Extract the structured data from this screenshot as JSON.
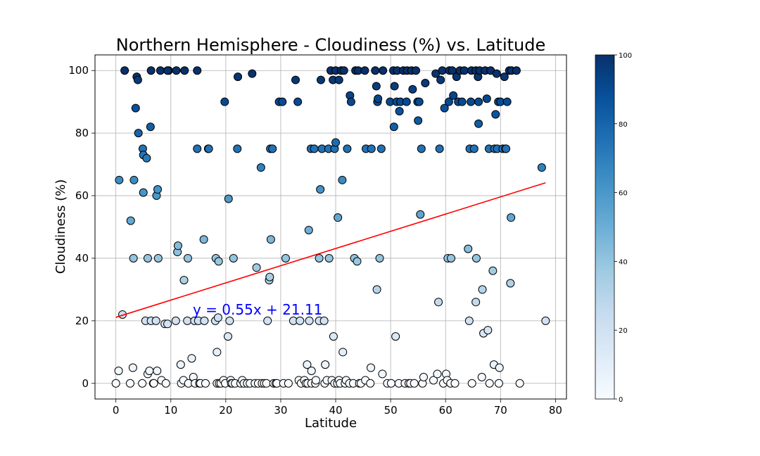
{
  "chart_data": {
    "type": "scatter",
    "title": "Northern Hemisphere - Cloudiness (%) vs. Latitude",
    "xlabel": "Latitude",
    "ylabel": "Cloudiness (%)",
    "xlim": [
      -3.8,
      82
    ],
    "ylim": [
      -5,
      105
    ],
    "x_ticks": [
      0,
      10,
      20,
      30,
      40,
      50,
      60,
      70,
      80
    ],
    "y_ticks": [
      0,
      20,
      40,
      60,
      80,
      100
    ],
    "grid": true,
    "colormap": "Blues",
    "colorbar": {
      "min": 0,
      "max": 100,
      "ticks": [
        0,
        20,
        40,
        60,
        80,
        100
      ]
    },
    "point_edge_color": "#000000",
    "regression": {
      "equation": "y = 0.55x + 21.11",
      "slope": 0.55,
      "intercept": 21.11,
      "x_range": [
        0,
        78.2
      ],
      "color": "#ff0000",
      "equation_color": "#0000ff",
      "equation_x": 14,
      "equation_y": 22
    },
    "points": [
      [
        0,
        0
      ],
      [
        0.5,
        4
      ],
      [
        0.6,
        65
      ],
      [
        1.2,
        22
      ],
      [
        1.6,
        100
      ],
      [
        2.6,
        0
      ],
      [
        2.7,
        52
      ],
      [
        3.1,
        5
      ],
      [
        3.2,
        40
      ],
      [
        3.3,
        65
      ],
      [
        3.6,
        88
      ],
      [
        3.8,
        98
      ],
      [
        4.1,
        80
      ],
      [
        4.0,
        97
      ],
      [
        4.8,
        0
      ],
      [
        4.9,
        75
      ],
      [
        5.0,
        73
      ],
      [
        5.0,
        61
      ],
      [
        5.4,
        20
      ],
      [
        5.6,
        72
      ],
      [
        5.8,
        40
      ],
      [
        5.8,
        3
      ],
      [
        6.1,
        4
      ],
      [
        6.3,
        82
      ],
      [
        6.4,
        20
      ],
      [
        6.4,
        100
      ],
      [
        6.8,
        0
      ],
      [
        6.9,
        0
      ],
      [
        7.3,
        20
      ],
      [
        7.4,
        60
      ],
      [
        7.6,
        62
      ],
      [
        7.7,
        40
      ],
      [
        7.5,
        4
      ],
      [
        8.1,
        100
      ],
      [
        8.3,
        1
      ],
      [
        8.9,
        19
      ],
      [
        9.1,
        0
      ],
      [
        9.4,
        19
      ],
      [
        9.6,
        100
      ],
      [
        9.4,
        100
      ],
      [
        10.9,
        20
      ],
      [
        11.0,
        100
      ],
      [
        11.2,
        42
      ],
      [
        11.3,
        44
      ],
      [
        11.8,
        6
      ],
      [
        11.9,
        0
      ],
      [
        12.3,
        1
      ],
      [
        12.5,
        100
      ],
      [
        12.4,
        33
      ],
      [
        13.1,
        40
      ],
      [
        13.0,
        20
      ],
      [
        13.2,
        0
      ],
      [
        13.8,
        8
      ],
      [
        14.1,
        2
      ],
      [
        14.3,
        20
      ],
      [
        14.4,
        0
      ],
      [
        14.8,
        75
      ],
      [
        14.8,
        100
      ],
      [
        15.0,
        20
      ],
      [
        15.2,
        0
      ],
      [
        15.4,
        0
      ],
      [
        16.1,
        20
      ],
      [
        16.0,
        46
      ],
      [
        16.3,
        0
      ],
      [
        16.8,
        75
      ],
      [
        16.9,
        75
      ],
      [
        18.1,
        20
      ],
      [
        18.2,
        40
      ],
      [
        18.4,
        10
      ],
      [
        18.4,
        0
      ],
      [
        18.6,
        21
      ],
      [
        18.7,
        39
      ],
      [
        18.8,
        0
      ],
      [
        19.1,
        0
      ],
      [
        19.6,
        1
      ],
      [
        19.8,
        90
      ],
      [
        19.9,
        0
      ],
      [
        20.4,
        15
      ],
      [
        20.5,
        59
      ],
      [
        20.7,
        20
      ],
      [
        20.9,
        1
      ],
      [
        21.0,
        0
      ],
      [
        21.2,
        0
      ],
      [
        21.4,
        40
      ],
      [
        21.7,
        0
      ],
      [
        22.1,
        75
      ],
      [
        22.2,
        98
      ],
      [
        22.7,
        0
      ],
      [
        23.0,
        1
      ],
      [
        23.3,
        0
      ],
      [
        23.9,
        0
      ],
      [
        24.4,
        0
      ],
      [
        24.8,
        99
      ],
      [
        25.3,
        0
      ],
      [
        25.6,
        37
      ],
      [
        25.9,
        0
      ],
      [
        26.4,
        69
      ],
      [
        26.6,
        0
      ],
      [
        27.0,
        0
      ],
      [
        27.4,
        0
      ],
      [
        27.6,
        20
      ],
      [
        27.9,
        33
      ],
      [
        28.0,
        34
      ],
      [
        28.1,
        75
      ],
      [
        28.2,
        46
      ],
      [
        28.5,
        75
      ],
      [
        28.7,
        0
      ],
      [
        29.1,
        0
      ],
      [
        29.3,
        0
      ],
      [
        29.7,
        90
      ],
      [
        30.3,
        90
      ],
      [
        30.5,
        0
      ],
      [
        30.9,
        40
      ],
      [
        31.4,
        0
      ],
      [
        32.3,
        20
      ],
      [
        32.7,
        97
      ],
      [
        33.1,
        90
      ],
      [
        33.3,
        1
      ],
      [
        33.5,
        20
      ],
      [
        33.7,
        0
      ],
      [
        34.3,
        1
      ],
      [
        34.6,
        0
      ],
      [
        34.8,
        6
      ],
      [
        34.9,
        0
      ],
      [
        35.1,
        49
      ],
      [
        35.2,
        20
      ],
      [
        35.5,
        75
      ],
      [
        35.6,
        4
      ],
      [
        35.6,
        0
      ],
      [
        36.1,
        75
      ],
      [
        36.3,
        0
      ],
      [
        36.4,
        1
      ],
      [
        37.0,
        40
      ],
      [
        37.0,
        20
      ],
      [
        37.2,
        62
      ],
      [
        37.3,
        97
      ],
      [
        37.5,
        75
      ],
      [
        37.9,
        20
      ],
      [
        38.0,
        0
      ],
      [
        38.1,
        6
      ],
      [
        38.4,
        1
      ],
      [
        38.7,
        75
      ],
      [
        38.8,
        40
      ],
      [
        39.1,
        100
      ],
      [
        39.3,
        1
      ],
      [
        39.5,
        97
      ],
      [
        39.6,
        15
      ],
      [
        39.8,
        0
      ],
      [
        39.8,
        75
      ],
      [
        40.0,
        77
      ],
      [
        40.0,
        100
      ],
      [
        40.3,
        0
      ],
      [
        40.4,
        53
      ],
      [
        40.6,
        97
      ],
      [
        40.6,
        1
      ],
      [
        40.8,
        0
      ],
      [
        41.0,
        100
      ],
      [
        41.2,
        65
      ],
      [
        41.3,
        10
      ],
      [
        41.5,
        100
      ],
      [
        41.7,
        0
      ],
      [
        41.9,
        1
      ],
      [
        42.1,
        75
      ],
      [
        42.5,
        0
      ],
      [
        42.6,
        92
      ],
      [
        42.8,
        90
      ],
      [
        43.2,
        0
      ],
      [
        43.4,
        40
      ],
      [
        43.6,
        100
      ],
      [
        43.9,
        39
      ],
      [
        44.1,
        100
      ],
      [
        44.3,
        0
      ],
      [
        44.6,
        0
      ],
      [
        45.3,
        100
      ],
      [
        45.4,
        1
      ],
      [
        45.5,
        75
      ],
      [
        46.3,
        0
      ],
      [
        46.4,
        5
      ],
      [
        46.5,
        75
      ],
      [
        47.2,
        100
      ],
      [
        47.4,
        95
      ],
      [
        47.5,
        30
      ],
      [
        47.6,
        90
      ],
      [
        47.7,
        91
      ],
      [
        48.0,
        40
      ],
      [
        48.3,
        75
      ],
      [
        48.5,
        3
      ],
      [
        48.6,
        100
      ],
      [
        49.4,
        0
      ],
      [
        49.9,
        90
      ],
      [
        50.1,
        0
      ],
      [
        50.5,
        100
      ],
      [
        50.6,
        82
      ],
      [
        50.7,
        95
      ],
      [
        50.9,
        15
      ],
      [
        51.1,
        90
      ],
      [
        51.2,
        100
      ],
      [
        51.5,
        0
      ],
      [
        51.6,
        87
      ],
      [
        51.8,
        90
      ],
      [
        52.3,
        100
      ],
      [
        52.6,
        0
      ],
      [
        52.9,
        90
      ],
      [
        53.0,
        100
      ],
      [
        53.3,
        0
      ],
      [
        53.6,
        0
      ],
      [
        53.8,
        100
      ],
      [
        54.0,
        94
      ],
      [
        54.3,
        0
      ],
      [
        54.6,
        100
      ],
      [
        54.9,
        90
      ],
      [
        55.0,
        84
      ],
      [
        55.2,
        90
      ],
      [
        55.4,
        54
      ],
      [
        55.6,
        75
      ],
      [
        55.8,
        0
      ],
      [
        56.0,
        2
      ],
      [
        56.3,
        96
      ],
      [
        57.8,
        1
      ],
      [
        58.2,
        99
      ],
      [
        58.5,
        3
      ],
      [
        58.7,
        26
      ],
      [
        58.9,
        75
      ],
      [
        59.1,
        97
      ],
      [
        59.4,
        100
      ],
      [
        59.6,
        0
      ],
      [
        59.8,
        88
      ],
      [
        60.1,
        3
      ],
      [
        60.3,
        1
      ],
      [
        60.4,
        40
      ],
      [
        60.6,
        90
      ],
      [
        60.7,
        100
      ],
      [
        60.9,
        0
      ],
      [
        61.0,
        40
      ],
      [
        61.2,
        100
      ],
      [
        61.4,
        92
      ],
      [
        61.7,
        0
      ],
      [
        62.0,
        98
      ],
      [
        62.3,
        90
      ],
      [
        62.6,
        100
      ],
      [
        63.0,
        90
      ],
      [
        63.4,
        100
      ],
      [
        64.1,
        43
      ],
      [
        64.3,
        20
      ],
      [
        64.4,
        75
      ],
      [
        64.6,
        90
      ],
      [
        64.7,
        100
      ],
      [
        64.8,
        0
      ],
      [
        65.2,
        75
      ],
      [
        65.5,
        100
      ],
      [
        65.5,
        26
      ],
      [
        65.6,
        40
      ],
      [
        65.9,
        98
      ],
      [
        66.0,
        90
      ],
      [
        66.0,
        83
      ],
      [
        66.2,
        100
      ],
      [
        66.6,
        2
      ],
      [
        66.7,
        30
      ],
      [
        66.9,
        16
      ],
      [
        67.2,
        100
      ],
      [
        67.5,
        91
      ],
      [
        67.7,
        17
      ],
      [
        67.9,
        75
      ],
      [
        68.0,
        0
      ],
      [
        68.2,
        100
      ],
      [
        68.6,
        36
      ],
      [
        68.8,
        6
      ],
      [
        68.9,
        75
      ],
      [
        69.1,
        86
      ],
      [
        69.3,
        99
      ],
      [
        69.4,
        75
      ],
      [
        69.6,
        90
      ],
      [
        69.7,
        0
      ],
      [
        69.8,
        5
      ],
      [
        70.0,
        90
      ],
      [
        70.4,
        75
      ],
      [
        70.7,
        98
      ],
      [
        70.9,
        75
      ],
      [
        71.0,
        75
      ],
      [
        71.2,
        90
      ],
      [
        71.6,
        100
      ],
      [
        71.8,
        32
      ],
      [
        71.9,
        53
      ],
      [
        72.0,
        100
      ],
      [
        72.9,
        100
      ],
      [
        73.5,
        0
      ],
      [
        77.5,
        69
      ],
      [
        78.2,
        20
      ]
    ]
  }
}
